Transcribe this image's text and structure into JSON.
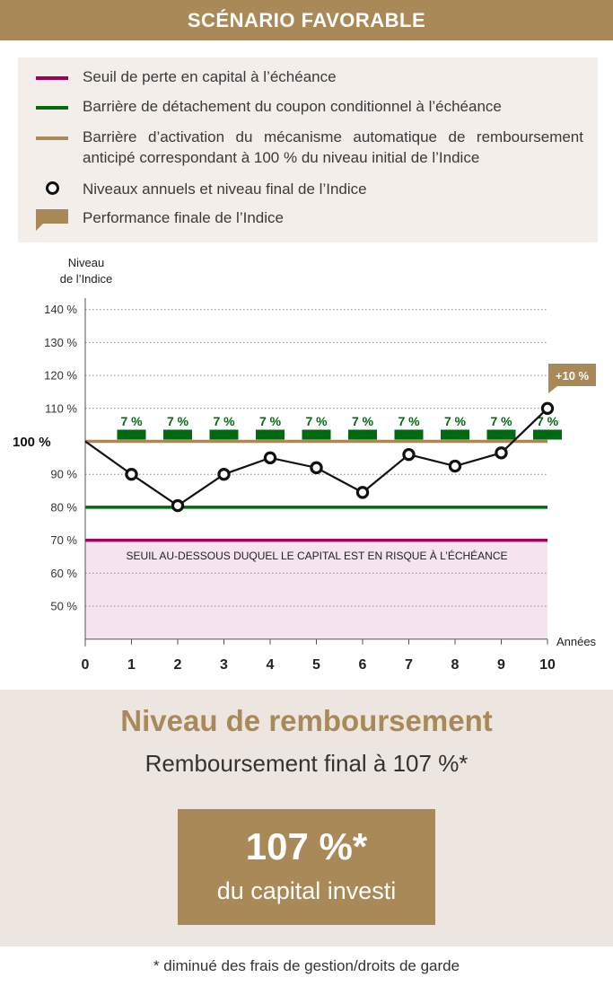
{
  "header": {
    "title": "SCÉNARIO FAVORABLE"
  },
  "legend": {
    "items": [
      {
        "label": "Seuil de perte en capital à l’échéance",
        "color": "#a1005a",
        "icon": "line"
      },
      {
        "label": "Barrière de détachement du coupon conditionnel à l’échéance",
        "color": "#006a12",
        "icon": "line"
      },
      {
        "label": "Barrière d’activation du mécanisme automatique de remboursement anticipé correspondant à 100 % du niveau initial de l’Indice",
        "color": "#a88957",
        "icon": "line"
      },
      {
        "label": "Niveaux annuels et niveau final de l’Indice",
        "color": "#111111",
        "icon": "circle"
      },
      {
        "label": "Performance finale de l’Indice",
        "color": "#a88957",
        "icon": "flag"
      }
    ]
  },
  "chart_data": {
    "type": "line",
    "ylabel_line1": "Niveau",
    "ylabel_line2": "de l’Indice",
    "xlabel": "Années",
    "ylim": [
      40,
      150
    ],
    "yticks": [
      50,
      60,
      70,
      80,
      90,
      110,
      120,
      130,
      140
    ],
    "ytick_suffix": " %",
    "y_reference_label": "100 %",
    "x": [
      0,
      1,
      2,
      3,
      4,
      5,
      6,
      7,
      8,
      9,
      10
    ],
    "series": [
      {
        "values": [
          100,
          90,
          80.5,
          90,
          95,
          92,
          84.5,
          96,
          92.5,
          96.5,
          110
        ]
      }
    ],
    "barriers": {
      "capital_loss": 70,
      "coupon": 80,
      "autocall": 100
    },
    "coupon_label": "7 %",
    "coupon_years": [
      1,
      2,
      3,
      4,
      5,
      6,
      7,
      8,
      9,
      10
    ],
    "risk_zone_label": "SEUIL AU-DESSOUS DUQUEL LE CAPITAL EST EN RISQUE À L’ÉCHÉANCE",
    "final_performance_label": "+10 %",
    "grid": true,
    "colors": {
      "capital": "#a1005a",
      "coupon": "#006a12",
      "autocall": "#a88957",
      "zone": "#f5e4ef",
      "line": "#111111"
    }
  },
  "result": {
    "title": "Niveau de remboursement",
    "subtitle": "Remboursement final à 107 %*",
    "box_value": "107 %*",
    "box_caption": "du capital investi"
  },
  "footnote": "* diminué des frais de gestion/droits de garde"
}
